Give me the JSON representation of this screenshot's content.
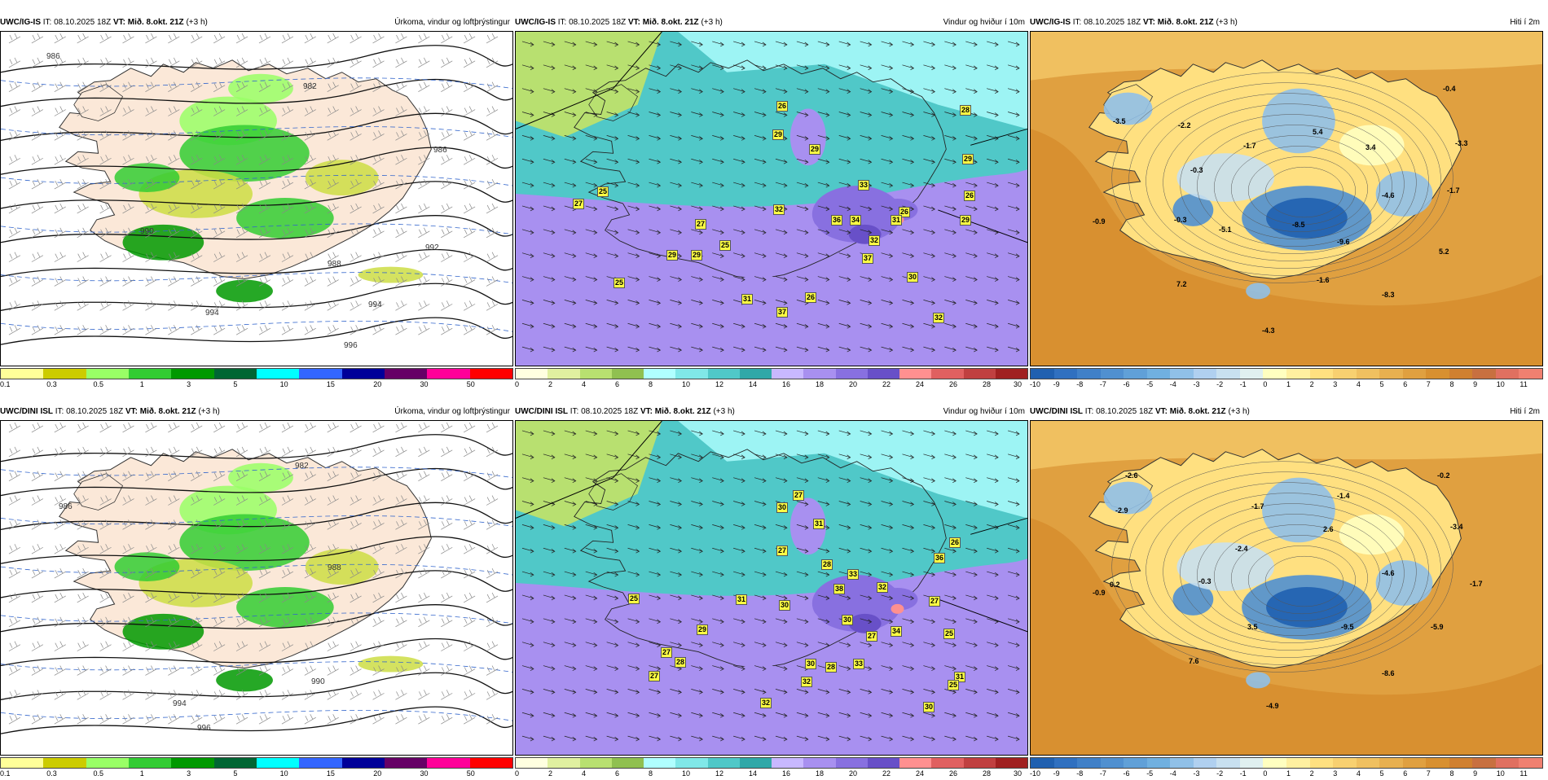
{
  "panels": [
    {
      "id": "p1",
      "model": "UWC/IG-IS",
      "it_label": "IT: 08.10.2025 18Z",
      "vt_label": "VT: Mið. 8.okt. 21Z",
      "offset": "(+3 h)",
      "title": "Úrkoma, vindur og loftþrýstingur",
      "type": "precip",
      "ticks": [
        "0.1",
        "0.3",
        "0.5",
        "1",
        "3",
        "5",
        "10",
        "15",
        "20",
        "30",
        "50"
      ],
      "colors": [
        "#ffff99",
        "#cccc00",
        "#99ff66",
        "#33cc33",
        "#009900",
        "#006633",
        "#00ffff",
        "#3366ff",
        "#000099",
        "#660066",
        "#ff0099",
        "#ff0000"
      ],
      "labels": [
        "986",
        "982",
        "990",
        "994",
        "996",
        "992",
        "994",
        "986",
        "988"
      ]
    },
    {
      "id": "p2",
      "model": "UWC/IG-IS",
      "it_label": "IT: 08.10.2025 18Z",
      "vt_label": "VT: Mið. 8.okt. 21Z",
      "offset": "(+3 h)",
      "title": "Vindur og hviður í 10m",
      "type": "wind",
      "ticks": [
        "0",
        "2",
        "4",
        "6",
        "8",
        "10",
        "12",
        "14",
        "16",
        "18",
        "20",
        "22",
        "24",
        "26",
        "28",
        "30"
      ],
      "colors": [
        "#ffffe0",
        "#e0f0a0",
        "#b8e070",
        "#90c050",
        "#b0ffff",
        "#80e8e8",
        "#50c8c8",
        "#30a8a8",
        "#c8b8ff",
        "#a890f0",
        "#8870e0",
        "#6850c8",
        "#ff9090",
        "#e06060",
        "#c04040",
        "#a02020"
      ],
      "labels": [
        "26",
        "28",
        "29",
        "29",
        "25",
        "27",
        "26",
        "29",
        "33",
        "26",
        "29",
        "27",
        "32",
        "36",
        "34",
        "31",
        "32",
        "29",
        "25",
        "37",
        "30",
        "31",
        "37",
        "26",
        "25",
        "32",
        "29"
      ]
    },
    {
      "id": "p3",
      "model": "UWC/IG-IS",
      "it_label": "IT: 08.10.2025 18Z",
      "vt_label": "VT: Mið. 8.okt. 21Z",
      "offset": "(+3 h)",
      "title": "Hiti í 2m",
      "type": "temp",
      "ticks": [
        "-10",
        "-9",
        "-8",
        "-7",
        "-6",
        "-5",
        "-4",
        "-3",
        "-2",
        "-1",
        "0",
        "1",
        "2",
        "3",
        "4",
        "5",
        "6",
        "7",
        "8",
        "9",
        "10",
        "11"
      ],
      "colors": [
        "#2060b0",
        "#3070c0",
        "#4080c8",
        "#5090d0",
        "#60a0d8",
        "#70b0e0",
        "#90c0e8",
        "#b0d0f0",
        "#c8e0f0",
        "#e0f0f0",
        "#ffffc0",
        "#fff0a0",
        "#ffe080",
        "#f8d070",
        "#f0c060",
        "#e8b050",
        "#e0a040",
        "#d89030",
        "#d08030",
        "#c87040",
        "#e07060",
        "#f08070"
      ],
      "labels": [
        "-3.5",
        "-2.2",
        "-1.7",
        "5.4",
        "3.4",
        "-0.4",
        "-3.3",
        "-0.3",
        "-0.9",
        "-0.3",
        "-5.1",
        "-8.5",
        "-4.6",
        "-1.7",
        "-9.6",
        "5.2",
        "7.2",
        "-1.6",
        "-8.3",
        "-4.3"
      ]
    },
    {
      "id": "p4",
      "model": "UWC/DINI ISL",
      "it_label": "IT: 08.10.2025 18Z",
      "vt_label": "VT: Mið. 8.okt. 21Z",
      "offset": "(+3 h)",
      "title": "Úrkoma, vindur og loftþrýstingur",
      "type": "precip",
      "ticks": [
        "0.1",
        "0.3",
        "0.5",
        "1",
        "3",
        "5",
        "10",
        "15",
        "20",
        "30",
        "50"
      ],
      "colors": [
        "#ffff99",
        "#cccc00",
        "#99ff66",
        "#33cc33",
        "#009900",
        "#006633",
        "#00ffff",
        "#3366ff",
        "#000099",
        "#660066",
        "#ff0099",
        "#ff0000"
      ],
      "labels": [
        "982",
        "986",
        "988",
        "990",
        "994",
        "996"
      ]
    },
    {
      "id": "p5",
      "model": "UWC/DINI ISL",
      "it_label": "IT: 08.10.2025 18Z",
      "vt_label": "VT: Mið. 8.okt. 21Z",
      "offset": "(+3 h)",
      "title": "Vindur og hviður í 10m",
      "type": "wind",
      "ticks": [
        "0",
        "2",
        "4",
        "6",
        "8",
        "10",
        "12",
        "14",
        "16",
        "18",
        "20",
        "22",
        "24",
        "26",
        "28",
        "30"
      ],
      "colors": [
        "#ffffe0",
        "#e0f0a0",
        "#b8e070",
        "#90c050",
        "#b0ffff",
        "#80e8e8",
        "#50c8c8",
        "#30a8a8",
        "#c8b8ff",
        "#a890f0",
        "#8870e0",
        "#6850c8",
        "#ff9090",
        "#e06060",
        "#c04040",
        "#a02020"
      ],
      "labels": [
        "30",
        "27",
        "31",
        "27",
        "28",
        "25",
        "31",
        "30",
        "33",
        "38",
        "36",
        "26",
        "32",
        "27",
        "25",
        "29",
        "30",
        "27",
        "33",
        "34",
        "27",
        "28",
        "27",
        "30",
        "28",
        "32",
        "32",
        "31",
        "25",
        "30"
      ]
    },
    {
      "id": "p6",
      "model": "UWC/DINI ISL",
      "it_label": "IT: 08.10.2025 18Z",
      "vt_label": "VT: Mið. 8.okt. 21Z",
      "offset": "(+3 h)",
      "title": "Hiti í 2m",
      "type": "temp",
      "ticks": [
        "-10",
        "-9",
        "-8",
        "-7",
        "-6",
        "-5",
        "-4",
        "-3",
        "-2",
        "-1",
        "0",
        "1",
        "2",
        "3",
        "4",
        "5",
        "6",
        "7",
        "8",
        "9",
        "10",
        "11"
      ],
      "colors": [
        "#2060b0",
        "#3070c0",
        "#4080c8",
        "#5090d0",
        "#60a0d8",
        "#70b0e0",
        "#90c0e8",
        "#b0d0f0",
        "#c8e0f0",
        "#e0f0f0",
        "#ffffc0",
        "#fff0a0",
        "#ffe080",
        "#f8d070",
        "#f0c060",
        "#e8b050",
        "#e0a040",
        "#d89030",
        "#d08030",
        "#c87040",
        "#e07060",
        "#f08070"
      ],
      "labels": [
        "-2.6",
        "-0.2",
        "-2.9",
        "-1.7",
        "-1.4",
        "2.6",
        "-3.4",
        "-2.4",
        "-4.6",
        "0.2",
        "-0.3",
        "-1.7",
        "-0.9",
        "3.5",
        "-9.5",
        "-5.9",
        "7.6",
        "-8.6",
        "-4.9"
      ]
    }
  ]
}
